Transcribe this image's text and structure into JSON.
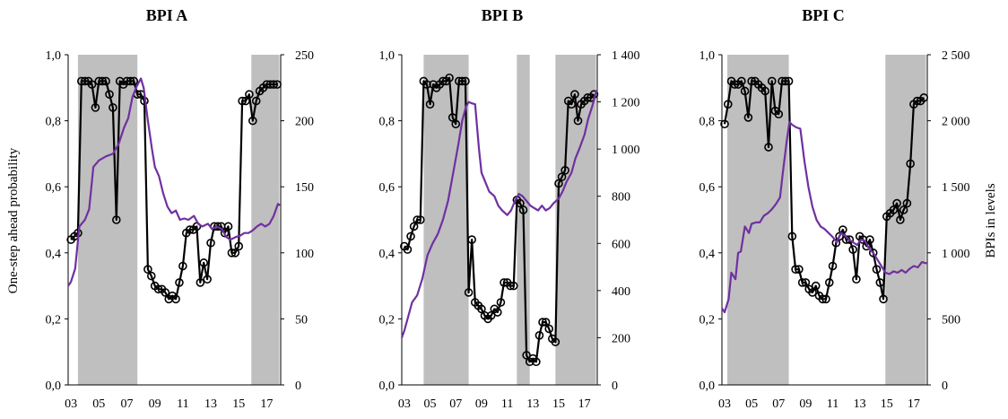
{
  "figure": {
    "ylabel_left": "One-step ahead probability",
    "ylabel_right": "BPIs in levels"
  },
  "colors": {
    "probability": "#000000",
    "bpi": "#7030a0",
    "shading": "#bfbfbf"
  },
  "chart_data": [
    {
      "type": "line",
      "title": "BPI A",
      "xlabel": "",
      "x_ticks": [
        "03",
        "05",
        "07",
        "09",
        "11",
        "13",
        "15",
        "17"
      ],
      "xlim": [
        2002.8,
        2018.0
      ],
      "ylim_left": [
        0,
        1
      ],
      "yticks_left": [
        "0,0",
        "0,2",
        "0,4",
        "0,6",
        "0,8",
        "1,0"
      ],
      "ylim_right": [
        0,
        250
      ],
      "yticks_right": [
        "0",
        "50",
        "100",
        "150",
        "200",
        "250"
      ],
      "shaded_regions": [
        [
          2003.5,
          2007.75
        ],
        [
          2015.9,
          2017.9
        ]
      ],
      "series": [
        {
          "axis": "left",
          "markers": true,
          "x": [
            2003.0,
            2003.25,
            2003.5,
            2003.75,
            2004.0,
            2004.25,
            2004.5,
            2004.75,
            2005.0,
            2005.25,
            2005.5,
            2005.75,
            2006.0,
            2006.25,
            2006.5,
            2006.75,
            2007.0,
            2007.25,
            2007.5,
            2007.75,
            2008.0,
            2008.25,
            2008.5,
            2008.75,
            2009.0,
            2009.25,
            2009.5,
            2009.75,
            2010.0,
            2010.25,
            2010.5,
            2010.75,
            2011.0,
            2011.25,
            2011.5,
            2011.75,
            2012.0,
            2012.25,
            2012.5,
            2012.75,
            2013.0,
            2013.25,
            2013.5,
            2013.75,
            2014.0,
            2014.25,
            2014.5,
            2014.75,
            2015.0,
            2015.25,
            2015.5,
            2015.75,
            2016.0,
            2016.25,
            2016.5,
            2016.75,
            2017.0,
            2017.25,
            2017.5,
            2017.75
          ],
          "y": [
            0.44,
            0.45,
            0.46,
            0.92,
            0.92,
            0.92,
            0.91,
            0.84,
            0.92,
            0.92,
            0.92,
            0.88,
            0.84,
            0.5,
            0.92,
            0.91,
            0.92,
            0.92,
            0.92,
            0.88,
            0.88,
            0.86,
            0.35,
            0.33,
            0.3,
            0.29,
            0.29,
            0.28,
            0.26,
            0.27,
            0.26,
            0.31,
            0.36,
            0.46,
            0.47,
            0.47,
            0.48,
            0.31,
            0.37,
            0.32,
            0.43,
            0.48,
            0.48,
            0.48,
            0.46,
            0.48,
            0.4,
            0.4,
            0.42,
            0.86,
            0.86,
            0.88,
            0.8,
            0.86,
            0.89,
            0.9,
            0.91,
            0.91,
            0.91,
            0.91
          ]
        },
        {
          "axis": "right",
          "markers": false,
          "x": [
            2002.8,
            2003.0,
            2003.3,
            2003.6,
            2004.0,
            2004.3,
            2004.6,
            2005.0,
            2005.5,
            2006.0,
            2006.4,
            2006.8,
            2007.1,
            2007.4,
            2007.7,
            2008.0,
            2008.2,
            2008.5,
            2008.8,
            2009.0,
            2009.3,
            2009.6,
            2009.9,
            2010.2,
            2010.5,
            2010.8,
            2011.1,
            2011.4,
            2011.8,
            2012.1,
            2012.4,
            2012.8,
            2013.1,
            2013.4,
            2013.8,
            2014.1,
            2014.4,
            2014.8,
            2015.1,
            2015.4,
            2015.7,
            2016.0,
            2016.3,
            2016.6,
            2016.9,
            2017.2,
            2017.5,
            2017.8,
            2017.95
          ],
          "y": [
            75,
            78,
            88,
            120,
            125,
            133,
            165,
            170,
            173,
            175,
            182,
            195,
            202,
            218,
            226,
            232,
            225,
            200,
            178,
            165,
            158,
            145,
            135,
            130,
            132,
            125,
            126,
            125,
            128,
            122,
            120,
            122,
            118,
            120,
            118,
            112,
            110,
            112,
            113,
            115,
            115,
            117,
            120,
            122,
            120,
            122,
            128,
            137,
            136
          ]
        }
      ]
    },
    {
      "type": "line",
      "title": "BPI B",
      "xlabel": "",
      "x_ticks": [
        "03",
        "05",
        "07",
        "09",
        "11",
        "13",
        "15",
        "17"
      ],
      "xlim": [
        2002.8,
        2018.0
      ],
      "ylim_left": [
        0,
        1
      ],
      "yticks_left": [
        "0,0",
        "0,2",
        "0,4",
        "0,6",
        "0,8",
        "1,0"
      ],
      "ylim_right": [
        0,
        1400
      ],
      "yticks_right": [
        "0",
        "200",
        "400",
        "600",
        "800",
        "1 000",
        "1 200",
        "1 400"
      ],
      "shaded_regions": [
        [
          2004.5,
          2008.0
        ],
        [
          2011.75,
          2012.75
        ],
        [
          2014.75,
          2017.9
        ]
      ],
      "series": [
        {
          "axis": "left",
          "markers": true,
          "x": [
            2003.0,
            2003.25,
            2003.5,
            2003.75,
            2004.0,
            2004.25,
            2004.5,
            2004.75,
            2005.0,
            2005.25,
            2005.5,
            2005.75,
            2006.0,
            2006.25,
            2006.5,
            2006.75,
            2007.0,
            2007.25,
            2007.5,
            2007.75,
            2008.0,
            2008.25,
            2008.5,
            2008.75,
            2009.0,
            2009.25,
            2009.5,
            2009.75,
            2010.0,
            2010.25,
            2010.5,
            2010.75,
            2011.0,
            2011.25,
            2011.5,
            2011.75,
            2012.0,
            2012.25,
            2012.5,
            2012.75,
            2013.0,
            2013.25,
            2013.5,
            2013.75,
            2014.0,
            2014.25,
            2014.5,
            2014.75,
            2015.0,
            2015.25,
            2015.5,
            2015.75,
            2016.0,
            2016.25,
            2016.5,
            2016.75,
            2017.0,
            2017.25,
            2017.5,
            2017.75
          ],
          "y": [
            0.42,
            0.41,
            0.45,
            0.48,
            0.5,
            0.5,
            0.92,
            0.91,
            0.85,
            0.91,
            0.9,
            0.91,
            0.92,
            0.92,
            0.93,
            0.81,
            0.79,
            0.92,
            0.92,
            0.92,
            0.28,
            0.44,
            0.25,
            0.24,
            0.23,
            0.21,
            0.2,
            0.21,
            0.23,
            0.22,
            0.25,
            0.31,
            0.31,
            0.3,
            0.3,
            0.56,
            0.55,
            0.53,
            0.09,
            0.07,
            0.08,
            0.07,
            0.15,
            0.19,
            0.19,
            0.17,
            0.14,
            0.13,
            0.61,
            0.63,
            0.65,
            0.86,
            0.85,
            0.88,
            0.8,
            0.85,
            0.86,
            0.87,
            0.87,
            0.88
          ]
        },
        {
          "axis": "right",
          "markers": false,
          "x": [
            2002.8,
            2003.0,
            2003.3,
            2003.6,
            2004.0,
            2004.4,
            2004.8,
            2005.2,
            2005.6,
            2006.0,
            2006.4,
            2006.8,
            2007.2,
            2007.5,
            2007.8,
            2008.0,
            2008.2,
            2008.5,
            2008.8,
            2009.0,
            2009.3,
            2009.6,
            2010.0,
            2010.3,
            2010.6,
            2011.0,
            2011.3,
            2011.6,
            2011.9,
            2012.2,
            2012.5,
            2012.8,
            2013.1,
            2013.4,
            2013.7,
            2014.0,
            2014.3,
            2014.6,
            2015.0,
            2015.3,
            2015.6,
            2016.0,
            2016.3,
            2016.6,
            2017.0,
            2017.3,
            2017.6,
            2017.95
          ],
          "y": [
            200,
            230,
            290,
            350,
            380,
            450,
            550,
            600,
            640,
            700,
            780,
            900,
            1020,
            1120,
            1180,
            1200,
            1195,
            1190,
            1000,
            900,
            860,
            820,
            800,
            760,
            740,
            720,
            740,
            780,
            810,
            800,
            780,
            760,
            750,
            740,
            760,
            740,
            750,
            770,
            790,
            820,
            860,
            900,
            960,
            1000,
            1060,
            1130,
            1180,
            1250
          ]
        }
      ]
    },
    {
      "type": "line",
      "title": "BPI C",
      "xlabel": "",
      "ylabel_right": "BPIs in levels",
      "x_ticks": [
        "03",
        "05",
        "07",
        "09",
        "11",
        "13",
        "15",
        "17"
      ],
      "xlim": [
        2002.8,
        2018.0
      ],
      "ylim_left": [
        0,
        1
      ],
      "yticks_left": [
        "0,0",
        "0,2",
        "0,4",
        "0,6",
        "0,8",
        "1,0"
      ],
      "ylim_right": [
        0,
        2500
      ],
      "yticks_right": [
        "0",
        "500",
        "1 000",
        "1 500",
        "2 000",
        "2 500"
      ],
      "shaded_regions": [
        [
          2003.2,
          2007.75
        ],
        [
          2014.9,
          2017.9
        ]
      ],
      "series": [
        {
          "axis": "left",
          "markers": true,
          "x": [
            2003.0,
            2003.25,
            2003.5,
            2003.75,
            2004.0,
            2004.25,
            2004.5,
            2004.75,
            2005.0,
            2005.25,
            2005.5,
            2005.75,
            2006.0,
            2006.25,
            2006.5,
            2006.75,
            2007.0,
            2007.25,
            2007.5,
            2007.75,
            2008.0,
            2008.25,
            2008.5,
            2008.75,
            2009.0,
            2009.25,
            2009.5,
            2009.75,
            2010.0,
            2010.25,
            2010.5,
            2010.75,
            2011.0,
            2011.25,
            2011.5,
            2011.75,
            2012.0,
            2012.25,
            2012.5,
            2012.75,
            2013.0,
            2013.25,
            2013.5,
            2013.75,
            2014.0,
            2014.25,
            2014.5,
            2014.75,
            2015.0,
            2015.25,
            2015.5,
            2015.75,
            2016.0,
            2016.25,
            2016.5,
            2016.75,
            2017.0,
            2017.25,
            2017.5,
            2017.75
          ],
          "y": [
            0.79,
            0.85,
            0.92,
            0.91,
            0.91,
            0.92,
            0.89,
            0.81,
            0.92,
            0.92,
            0.91,
            0.9,
            0.89,
            0.72,
            0.92,
            0.83,
            0.82,
            0.92,
            0.92,
            0.92,
            0.45,
            0.35,
            0.35,
            0.31,
            0.31,
            0.29,
            0.28,
            0.3,
            0.27,
            0.26,
            0.26,
            0.31,
            0.36,
            0.43,
            0.45,
            0.47,
            0.44,
            0.44,
            0.41,
            0.32,
            0.45,
            0.44,
            0.42,
            0.44,
            0.4,
            0.35,
            0.31,
            0.26,
            0.51,
            0.52,
            0.53,
            0.55,
            0.5,
            0.53,
            0.55,
            0.67,
            0.85,
            0.86,
            0.86,
            0.87
          ]
        },
        {
          "axis": "right",
          "markers": false,
          "x": [
            2002.8,
            2003.0,
            2003.3,
            2003.5,
            2003.8,
            2004.0,
            2004.2,
            2004.5,
            2004.8,
            2005.0,
            2005.3,
            2005.6,
            2005.9,
            2006.2,
            2006.5,
            2006.8,
            2007.1,
            2007.3,
            2007.6,
            2007.8,
            2008.0,
            2008.3,
            2008.6,
            2008.9,
            2009.2,
            2009.5,
            2009.8,
            2010.1,
            2010.4,
            2010.7,
            2011.0,
            2011.3,
            2011.6,
            2011.9,
            2012.2,
            2012.5,
            2012.8,
            2013.1,
            2013.4,
            2013.7,
            2014.0,
            2014.3,
            2014.6,
            2014.9,
            2015.2,
            2015.5,
            2015.8,
            2016.1,
            2016.4,
            2016.7,
            2017.0,
            2017.3,
            2017.6,
            2017.95
          ],
          "y": [
            580,
            550,
            650,
            850,
            800,
            1000,
            1010,
            1200,
            1150,
            1220,
            1230,
            1230,
            1280,
            1300,
            1330,
            1370,
            1420,
            1600,
            1850,
            1990,
            1970,
            1950,
            1940,
            1700,
            1500,
            1350,
            1250,
            1200,
            1180,
            1150,
            1120,
            1080,
            1150,
            1130,
            1100,
            1080,
            1060,
            1100,
            1090,
            1030,
            1000,
            950,
            900,
            850,
            840,
            860,
            850,
            870,
            850,
            880,
            900,
            890,
            930,
            920
          ]
        }
      ]
    }
  ]
}
